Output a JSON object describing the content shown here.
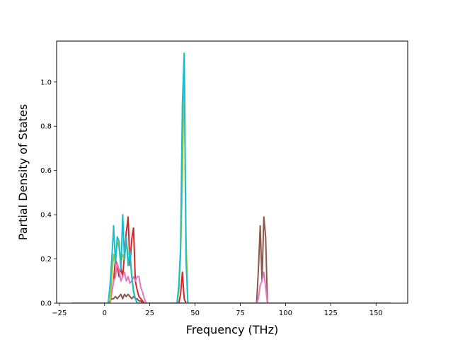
{
  "chart_data": {
    "type": "line",
    "title": "",
    "xlabel": "Frequency (THz)",
    "ylabel": "Partial Density of States",
    "xlim": [
      -26.5,
      167.5
    ],
    "ylim": [
      0.0,
      1.185
    ],
    "xticks": [
      -25,
      0,
      25,
      50,
      75,
      100,
      125,
      150
    ],
    "xtick_labels": [
      "−25",
      "0",
      "25",
      "50",
      "75",
      "100",
      "125",
      "150"
    ],
    "yticks": [
      0.0,
      0.2,
      0.4,
      0.6,
      0.8,
      1.0
    ],
    "ytick_labels": [
      "0.0",
      "0.2",
      "0.4",
      "0.6",
      "0.8",
      "1.0"
    ],
    "grid": false,
    "legend": "none",
    "series": [
      {
        "color": "#d62728",
        "x": [
          -18,
          3,
          4,
          5,
          6,
          7,
          8,
          9,
          10,
          11,
          12,
          13,
          14,
          15,
          16,
          17,
          18,
          19,
          20,
          21,
          22,
          23,
          41,
          42,
          43,
          44,
          45,
          46,
          158
        ],
        "y": [
          0,
          0,
          0.05,
          0.1,
          0.2,
          0.17,
          0.12,
          0.16,
          0.12,
          0.22,
          0.32,
          0.39,
          0.17,
          0.29,
          0.34,
          0.1,
          0.06,
          0.03,
          0.02,
          0.01,
          0,
          0,
          0,
          0.04,
          0.14,
          0.02,
          0,
          0,
          0
        ]
      },
      {
        "color": "#8c564b",
        "x": [
          -18,
          2,
          3,
          4,
          5,
          6,
          7,
          8,
          9,
          10,
          11,
          12,
          13,
          14,
          15,
          16,
          17,
          18,
          19,
          20,
          21,
          22,
          84,
          85,
          86,
          87,
          88,
          89,
          90,
          158
        ],
        "y": [
          0,
          0,
          0.01,
          0.02,
          0.02,
          0.03,
          0.02,
          0.03,
          0.04,
          0.02,
          0.04,
          0.03,
          0.04,
          0.03,
          0.02,
          0.03,
          0.02,
          0.02,
          0.01,
          0.01,
          0,
          0,
          0,
          0.15,
          0.35,
          0.1,
          0.39,
          0.3,
          0,
          0
        ]
      },
      {
        "color": "#e377c2",
        "x": [
          -18,
          3,
          4,
          5,
          6,
          7,
          8,
          9,
          10,
          11,
          12,
          13,
          14,
          15,
          16,
          17,
          18,
          19,
          20,
          21,
          22,
          23,
          84,
          85,
          86,
          87,
          88,
          89,
          90,
          158
        ],
        "y": [
          0,
          0,
          0.05,
          0.1,
          0.12,
          0.18,
          0.15,
          0.1,
          0.12,
          0.14,
          0.1,
          0.12,
          0.09,
          0.1,
          0.12,
          0.1,
          0.12,
          0.12,
          0.07,
          0.05,
          0.02,
          0,
          0,
          0.02,
          0.08,
          0.1,
          0.14,
          0.07,
          0,
          0
        ]
      },
      {
        "color": "#bcbd22",
        "x": [
          -18,
          3,
          4,
          5,
          6,
          7,
          8,
          9,
          10,
          11,
          12,
          13,
          14,
          15,
          16,
          17,
          18,
          40,
          41,
          42,
          43,
          44,
          45,
          46,
          158
        ],
        "y": [
          0,
          0,
          0.12,
          0.22,
          0.18,
          0.28,
          0.25,
          0.18,
          0.22,
          0.2,
          0.28,
          0.22,
          0.22,
          0.12,
          0.06,
          0.02,
          0,
          0,
          0.05,
          0.22,
          0.55,
          1.1,
          0.3,
          0,
          0
        ]
      },
      {
        "color": "#17becf",
        "x": [
          -18,
          2,
          3,
          4,
          5,
          6,
          7,
          8,
          9,
          10,
          11,
          12,
          13,
          14,
          15,
          16,
          17,
          18,
          40,
          41,
          42,
          43,
          44,
          45,
          46,
          158
        ],
        "y": [
          0,
          0,
          0.08,
          0.2,
          0.35,
          0.18,
          0.3,
          0.28,
          0.15,
          0.4,
          0.2,
          0.3,
          0.17,
          0.24,
          0.12,
          0.05,
          0.02,
          0,
          0,
          0.08,
          0.25,
          0.9,
          1.13,
          0.2,
          0,
          0
        ]
      }
    ]
  }
}
